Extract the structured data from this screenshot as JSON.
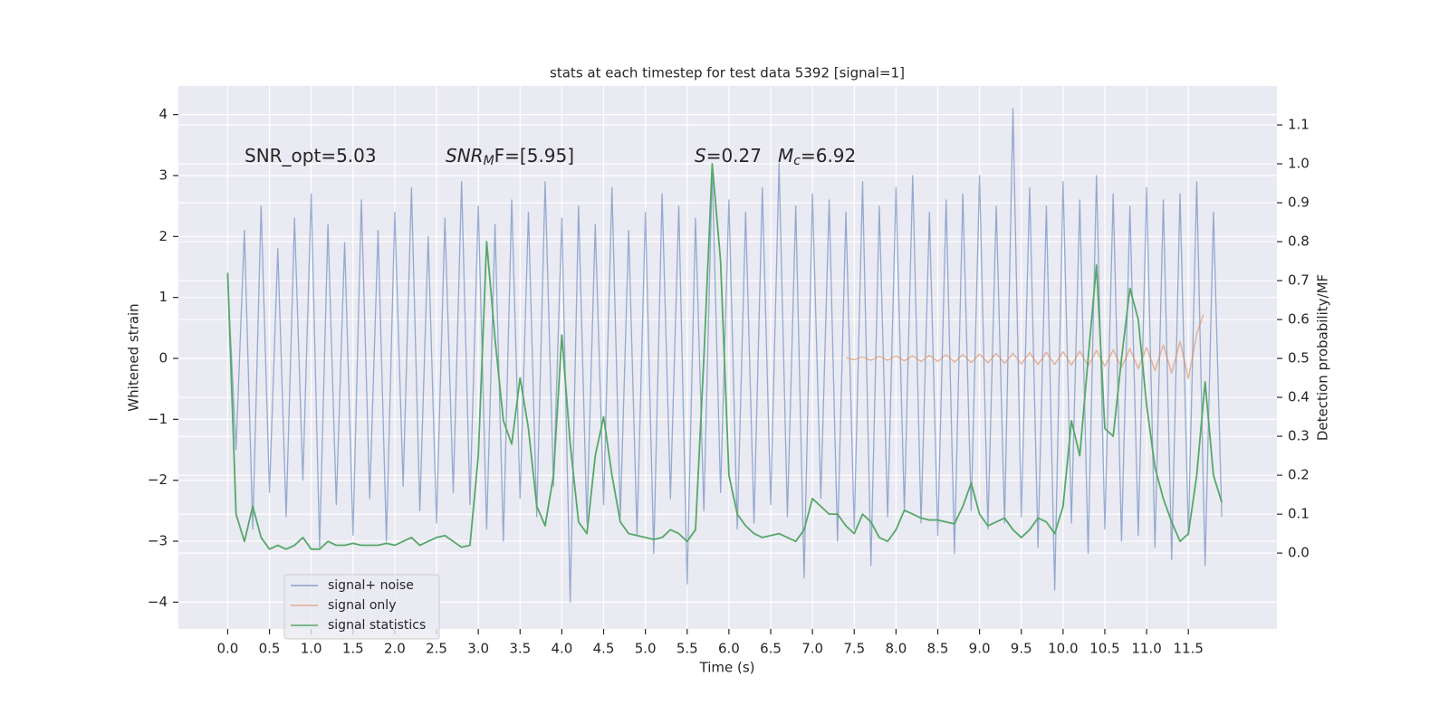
{
  "chart_data": {
    "type": "line",
    "title": "stats at each timestep for test data 5392 [signal=1]",
    "xlabel": "Time (s)",
    "ylabel": "Whitened strain",
    "y2label": "Detection probability/MF",
    "annotations": [
      [
        {
          "text": "SNR_opt=5.03"
        }
      ],
      [
        {
          "text": "SNR",
          "italic": true
        },
        {
          "text": "M",
          "italic": true,
          "sub": true
        },
        {
          "text": "F=[5.95]"
        }
      ],
      [
        {
          "text": "S",
          "italic": true
        },
        {
          "text": "=0.27"
        }
      ],
      [
        {
          "text": "M",
          "italic": true
        },
        {
          "text": "c",
          "italic": true,
          "sub": true
        },
        {
          "text": "=6.92"
        }
      ]
    ],
    "x": [
      0.0,
      0.1,
      0.2,
      0.3,
      0.4,
      0.5,
      0.6,
      0.7,
      0.8,
      0.9,
      1.0,
      1.1,
      1.2,
      1.3,
      1.4,
      1.5,
      1.6,
      1.7,
      1.8,
      1.9,
      2.0,
      2.1,
      2.2,
      2.3,
      2.4,
      2.5,
      2.6,
      2.7,
      2.8,
      2.9,
      3.0,
      3.1,
      3.2,
      3.3,
      3.4,
      3.5,
      3.6,
      3.7,
      3.8,
      3.9,
      4.0,
      4.1,
      4.2,
      4.3,
      4.4,
      4.5,
      4.6,
      4.7,
      4.8,
      4.9,
      5.0,
      5.1,
      5.2,
      5.3,
      5.4,
      5.5,
      5.6,
      5.7,
      5.8,
      5.9,
      6.0,
      6.1,
      6.2,
      6.3,
      6.4,
      6.5,
      6.6,
      6.7,
      6.8,
      6.9,
      7.0,
      7.1,
      7.2,
      7.3,
      7.4,
      7.5,
      7.6,
      7.7,
      7.8,
      7.9,
      8.0,
      8.1,
      8.2,
      8.3,
      8.4,
      8.5,
      8.6,
      8.7,
      8.8,
      8.9,
      9.0,
      9.1,
      9.2,
      9.3,
      9.4,
      9.5,
      9.6,
      9.7,
      9.8,
      9.9,
      10.0,
      10.1,
      10.2,
      10.3,
      10.4,
      10.5,
      10.6,
      10.7,
      10.8,
      10.9,
      11.0,
      11.1,
      11.2,
      11.3,
      11.4,
      11.5,
      11.6,
      11.7,
      11.8,
      11.9
    ],
    "series": [
      {
        "name": "signal+ noise",
        "color": "#4c72b0",
        "values": [
          1.3,
          -1.5,
          2.1,
          -2.8,
          2.5,
          -2.2,
          1.8,
          -2.6,
          2.3,
          -2.0,
          2.7,
          -3.1,
          2.2,
          -2.4,
          1.9,
          -2.9,
          2.6,
          -2.3,
          2.1,
          -3.0,
          2.4,
          -2.1,
          2.8,
          -2.5,
          2.0,
          -2.7,
          2.3,
          -2.2,
          2.9,
          -2.4,
          2.5,
          -2.8,
          2.2,
          -3.0,
          2.6,
          -2.3,
          2.4,
          -2.6,
          2.9,
          -2.1,
          2.3,
          -4.0,
          2.5,
          -2.7,
          2.2,
          -2.4,
          2.8,
          -2.6,
          2.1,
          -2.9,
          2.4,
          -3.2,
          2.7,
          -2.3,
          2.5,
          -3.7,
          2.3,
          -2.5,
          3.1,
          -2.2,
          2.6,
          -2.8,
          2.4,
          -2.7,
          2.8,
          -2.4,
          3.2,
          -2.6,
          2.5,
          -3.6,
          2.7,
          -2.3,
          2.6,
          -3.0,
          2.4,
          -2.8,
          2.9,
          -3.4,
          2.5,
          -2.6,
          2.8,
          -2.5,
          3.0,
          -2.7,
          2.4,
          -2.9,
          2.6,
          -3.2,
          2.7,
          -2.5,
          3.0,
          -2.8,
          2.5,
          -2.7,
          4.1,
          -2.6,
          2.8,
          -3.1,
          2.5,
          -3.8,
          2.9,
          -2.7,
          2.6,
          -3.2,
          3.0,
          -2.8,
          2.7,
          -3.0,
          2.5,
          -2.9,
          2.8,
          -3.1,
          2.6,
          -3.3,
          2.7,
          -2.9,
          2.9,
          -3.4,
          2.4,
          -2.6
        ]
      },
      {
        "name": "signal only",
        "color": "#dd8452",
        "x": [
          7.4,
          7.5,
          7.6,
          7.7,
          7.8,
          7.9,
          8.0,
          8.1,
          8.2,
          8.3,
          8.4,
          8.5,
          8.6,
          8.7,
          8.8,
          8.9,
          9.0,
          9.1,
          9.2,
          9.3,
          9.4,
          9.5,
          9.6,
          9.7,
          9.8,
          9.9,
          10.0,
          10.1,
          10.2,
          10.3,
          10.4,
          10.5,
          10.6,
          10.7,
          10.8,
          10.9,
          11.0,
          11.1,
          11.2,
          11.3,
          11.4,
          11.5,
          11.6,
          11.68
        ],
        "values": [
          0.01,
          -0.02,
          0.02,
          -0.03,
          0.03,
          -0.03,
          0.04,
          -0.04,
          0.04,
          -0.05,
          0.05,
          -0.05,
          0.06,
          -0.06,
          0.06,
          -0.07,
          0.07,
          -0.07,
          0.08,
          -0.08,
          0.08,
          -0.09,
          0.09,
          -0.1,
          0.1,
          -0.1,
          0.11,
          -0.11,
          0.12,
          -0.12,
          0.13,
          -0.13,
          0.14,
          -0.15,
          0.16,
          -0.17,
          0.18,
          -0.2,
          0.22,
          -0.24,
          0.28,
          -0.33,
          0.4,
          0.72
        ]
      },
      {
        "name": "signal statistics",
        "color": "#55a868",
        "axis": "y2",
        "values": [
          0.72,
          0.1,
          0.03,
          0.12,
          0.04,
          0.01,
          0.02,
          0.01,
          0.02,
          0.04,
          0.01,
          0.01,
          0.03,
          0.02,
          0.02,
          0.025,
          0.02,
          0.02,
          0.02,
          0.025,
          0.02,
          0.03,
          0.04,
          0.02,
          0.03,
          0.04,
          0.045,
          0.03,
          0.015,
          0.02,
          0.25,
          0.8,
          0.55,
          0.34,
          0.28,
          0.45,
          0.32,
          0.12,
          0.07,
          0.2,
          0.56,
          0.28,
          0.08,
          0.05,
          0.25,
          0.35,
          0.2,
          0.08,
          0.05,
          0.045,
          0.04,
          0.035,
          0.04,
          0.06,
          0.05,
          0.03,
          0.06,
          0.5,
          1.0,
          0.75,
          0.2,
          0.1,
          0.07,
          0.05,
          0.04,
          0.045,
          0.05,
          0.04,
          0.03,
          0.06,
          0.14,
          0.12,
          0.1,
          0.1,
          0.07,
          0.05,
          0.1,
          0.08,
          0.04,
          0.03,
          0.06,
          0.11,
          0.1,
          0.09,
          0.085,
          0.085,
          0.08,
          0.075,
          0.12,
          0.18,
          0.1,
          0.07,
          0.08,
          0.09,
          0.06,
          0.04,
          0.06,
          0.09,
          0.08,
          0.05,
          0.12,
          0.34,
          0.25,
          0.5,
          0.74,
          0.32,
          0.3,
          0.5,
          0.68,
          0.6,
          0.38,
          0.22,
          0.14,
          0.08,
          0.03,
          0.05,
          0.2,
          0.44,
          0.2,
          0.13
        ]
      }
    ],
    "xlim": [
      -0.59,
      12.56
    ],
    "xticks": [
      {
        "value": 0,
        "label": "0.0"
      },
      {
        "value": 0.5,
        "label": "0.5"
      },
      {
        "value": 1,
        "label": "1.0"
      },
      {
        "value": 1.5,
        "label": "1.5"
      },
      {
        "value": 2,
        "label": "2.0"
      },
      {
        "value": 2.5,
        "label": "2.5"
      },
      {
        "value": 3,
        "label": "3.0"
      },
      {
        "value": 3.5,
        "label": "3.5"
      },
      {
        "value": 4,
        "label": "4.0"
      },
      {
        "value": 4.5,
        "label": "4.5"
      },
      {
        "value": 5,
        "label": "5.0"
      },
      {
        "value": 5.5,
        "label": "5.5"
      },
      {
        "value": 6,
        "label": "6.0"
      },
      {
        "value": 6.5,
        "label": "6.5"
      },
      {
        "value": 7,
        "label": "7.0"
      },
      {
        "value": 7.5,
        "label": "7.5"
      },
      {
        "value": 8,
        "label": "8.0"
      },
      {
        "value": 8.5,
        "label": "8.5"
      },
      {
        "value": 9,
        "label": "9.0"
      },
      {
        "value": 9.5,
        "label": "9.5"
      },
      {
        "value": 10,
        "label": "10.0"
      },
      {
        "value": 10.5,
        "label": "10.5"
      },
      {
        "value": 11,
        "label": "11.0"
      },
      {
        "value": 11.5,
        "label": "11.5"
      }
    ],
    "ylim": [
      -4.44,
      4.47
    ],
    "yticks": [
      {
        "value": -4,
        "label": "−4"
      },
      {
        "value": -3,
        "label": "−3"
      },
      {
        "value": -2,
        "label": "−2"
      },
      {
        "value": -1,
        "label": "−1"
      },
      0,
      1,
      2,
      3,
      4
    ],
    "y2lim": [
      -0.195,
      1.2
    ],
    "y2ticks": [
      {
        "value": 0,
        "label": "0.0"
      },
      {
        "value": 0.1,
        "label": "0.1"
      },
      {
        "value": 0.2,
        "label": "0.2"
      },
      {
        "value": 0.3,
        "label": "0.3"
      },
      {
        "value": 0.4,
        "label": "0.4"
      },
      {
        "value": 0.5,
        "label": "0.5"
      },
      {
        "value": 0.6,
        "label": "0.6"
      },
      {
        "value": 0.7,
        "label": "0.7"
      },
      {
        "value": 0.8,
        "label": "0.8"
      },
      {
        "value": 0.9,
        "label": "0.9"
      },
      {
        "value": 1,
        "label": "1.0"
      },
      {
        "value": 1.1,
        "label": "1.1"
      }
    ],
    "grid": true,
    "legend": "lower left"
  }
}
